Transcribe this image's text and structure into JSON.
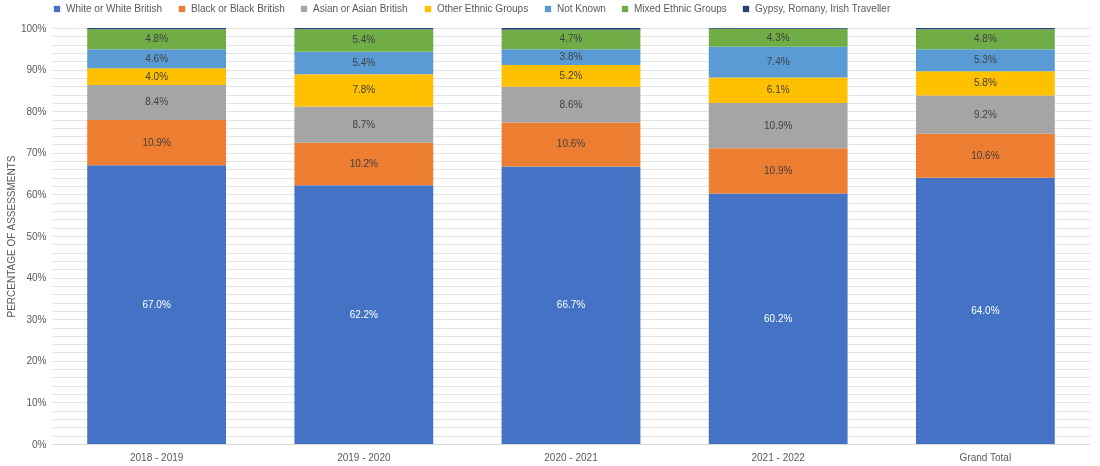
{
  "chart_data": {
    "type": "bar",
    "stacked": true,
    "ylabel": "PERCENTAGE OF ASSESSMENTS",
    "categories": [
      "2018 - 2019",
      "2019 - 2020",
      "2020 - 2021",
      "2021 - 2022",
      "Grand Total"
    ],
    "series": [
      {
        "name": "White or White British",
        "color": "#4472c4",
        "values": [
          67.0,
          62.2,
          66.7,
          60.2,
          64.0
        ],
        "value_labels": [
          "67.0%",
          "62.2%",
          "66.7%",
          "60.2%",
          "64.0%"
        ]
      },
      {
        "name": "Black or Black British",
        "color": "#ed7d31",
        "values": [
          10.9,
          10.2,
          10.6,
          10.9,
          10.6
        ],
        "value_labels": [
          "10.9%",
          "10.2%",
          "10.6%",
          "10.9%",
          "10.6%"
        ]
      },
      {
        "name": "Asian or Asian British",
        "color": "#a5a5a5",
        "values": [
          8.4,
          8.7,
          8.6,
          10.9,
          9.2
        ],
        "value_labels": [
          "8.4%",
          "8.7%",
          "8.6%",
          "10.9%",
          "9.2%"
        ]
      },
      {
        "name": "Other Ethnic Groups",
        "color": "#ffc000",
        "values": [
          4.0,
          7.8,
          5.2,
          6.1,
          5.8
        ],
        "value_labels": [
          "4.0%",
          "7.8%",
          "5.2%",
          "6.1%",
          "5.8%"
        ]
      },
      {
        "name": "Not Known",
        "color": "#5b9bd5",
        "values": [
          4.6,
          5.4,
          3.8,
          7.4,
          5.3
        ],
        "value_labels": [
          "4.6%",
          "5.4%",
          "3.8%",
          "7.4%",
          "5.3%"
        ]
      },
      {
        "name": "Mixed Ethnic Groups",
        "color": "#70ad47",
        "values": [
          4.8,
          5.4,
          4.7,
          4.3,
          4.8
        ],
        "value_labels": [
          "4.8%",
          "5.4%",
          "4.7%",
          "4.3%",
          "4.8%"
        ]
      },
      {
        "name": "Gypsy, Romany, Irish Traveller",
        "color": "#264478",
        "values": [
          0.3,
          0.3,
          0.4,
          0.2,
          0.3
        ],
        "value_labels": [
          null,
          null,
          null,
          null,
          null
        ]
      }
    ],
    "ylim": [
      0,
      100
    ],
    "yticks": [
      {
        "value": 0,
        "label": "0%"
      },
      {
        "value": 2,
        "label": null
      },
      {
        "value": 4,
        "label": null
      },
      {
        "value": 6,
        "label": null
      },
      {
        "value": 8,
        "label": null
      },
      {
        "value": 10,
        "label": "10%"
      },
      {
        "value": 12,
        "label": null
      },
      {
        "value": 14,
        "label": null
      },
      {
        "value": 16,
        "label": null
      },
      {
        "value": 18,
        "label": null
      },
      {
        "value": 20,
        "label": "20%"
      },
      {
        "value": 22,
        "label": null
      },
      {
        "value": 24,
        "label": null
      },
      {
        "value": 26,
        "label": null
      },
      {
        "value": 28,
        "label": null
      },
      {
        "value": 30,
        "label": "30%"
      },
      {
        "value": 32,
        "label": null
      },
      {
        "value": 34,
        "label": null
      },
      {
        "value": 36,
        "label": null
      },
      {
        "value": 38,
        "label": null
      },
      {
        "value": 40,
        "label": "40%"
      },
      {
        "value": 42,
        "label": null
      },
      {
        "value": 44,
        "label": null
      },
      {
        "value": 46,
        "label": null
      },
      {
        "value": 48,
        "label": null
      },
      {
        "value": 50,
        "label": "50%"
      },
      {
        "value": 52,
        "label": null
      },
      {
        "value": 54,
        "label": null
      },
      {
        "value": 56,
        "label": null
      },
      {
        "value": 58,
        "label": null
      },
      {
        "value": 60,
        "label": "60%"
      },
      {
        "value": 62,
        "label": null
      },
      {
        "value": 64,
        "label": null
      },
      {
        "value": 66,
        "label": null
      },
      {
        "value": 68,
        "label": null
      },
      {
        "value": 70,
        "label": "70%"
      },
      {
        "value": 72,
        "label": null
      },
      {
        "value": 74,
        "label": null
      },
      {
        "value": 76,
        "label": null
      },
      {
        "value": 78,
        "label": null
      },
      {
        "value": 80,
        "label": "80%"
      },
      {
        "value": 82,
        "label": null
      },
      {
        "value": 84,
        "label": null
      },
      {
        "value": 86,
        "label": null
      },
      {
        "value": 88,
        "label": null
      },
      {
        "value": 90,
        "label": "90%"
      },
      {
        "value": 92,
        "label": null
      },
      {
        "value": 94,
        "label": null
      },
      {
        "value": 96,
        "label": null
      },
      {
        "value": 98,
        "label": null
      },
      {
        "value": 100,
        "label": "100%"
      }
    ],
    "grid": "y",
    "legend": "top"
  }
}
